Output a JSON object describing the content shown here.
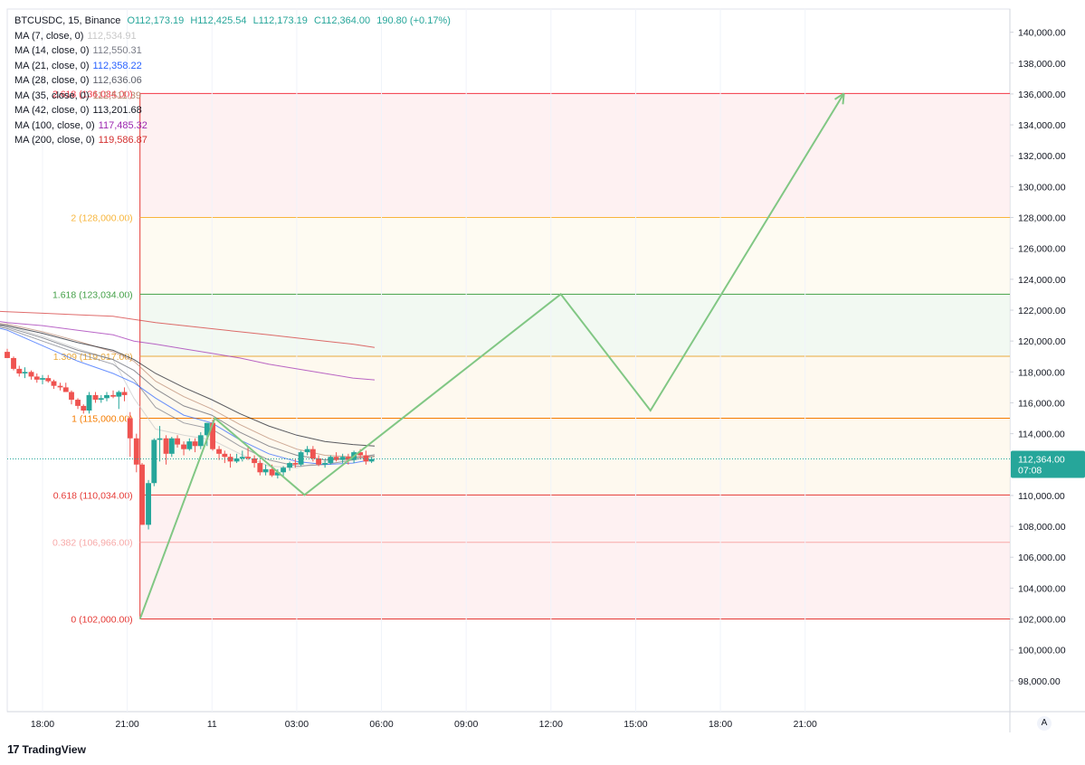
{
  "legend": {
    "symbol": "BTCUSDC, 15, Binance",
    "open": "O112,173.19",
    "high": "H112,425.54",
    "low": "L112,173.19",
    "close": "C112,364.00",
    "change": "190.80 (+0.17%)",
    "indicators": [
      {
        "label": "MA (7, close, 0)",
        "value": "112,534.91",
        "color": "#c8c8c8"
      },
      {
        "label": "MA (14, close, 0)",
        "value": "112,550.31",
        "color": "#787b86"
      },
      {
        "label": "MA (21, close, 0)",
        "value": "112,358.22",
        "color": "#2962ff"
      },
      {
        "label": "MA (28, close, 0)",
        "value": "112,636.06",
        "color": "#5d606b"
      },
      {
        "label": "MA (35, close, 0)",
        "value": "112,511.39",
        "color": "#b9886f"
      },
      {
        "label": "MA (42, close, 0)",
        "value": "113,201.68",
        "color": "#131722"
      },
      {
        "label": "MA (100, close, 0)",
        "value": "117,485.32",
        "color": "#9c27b0"
      },
      {
        "label": "MA (200, close, 0)",
        "value": "119,586.87",
        "color": "#d32f2f"
      }
    ]
  },
  "brand": {
    "logo": "17",
    "name": "TradingView"
  },
  "scale_button": "A",
  "chart_data": {
    "type": "candlestick",
    "symbol": "BTCUSDC",
    "interval": "15",
    "ylim": [
      96000,
      141500
    ],
    "y_ticks": [
      {
        "value": 140000,
        "label": "140,000.00"
      },
      {
        "value": 138000,
        "label": "138,000.00"
      },
      {
        "value": 136000,
        "label": "136,000.00"
      },
      {
        "value": 134000,
        "label": "134,000.00"
      },
      {
        "value": 132000,
        "label": "132,000.00"
      },
      {
        "value": 130000,
        "label": "130,000.00"
      },
      {
        "value": 128000,
        "label": "128,000.00"
      },
      {
        "value": 126000,
        "label": "126,000.00"
      },
      {
        "value": 124000,
        "label": "124,000.00"
      },
      {
        "value": 122000,
        "label": "122,000.00"
      },
      {
        "value": 120000,
        "label": "120,000.00"
      },
      {
        "value": 118000,
        "label": "118,000.00"
      },
      {
        "value": 116000,
        "label": "116,000.00"
      },
      {
        "value": 114000,
        "label": "114,000.00"
      },
      {
        "value": 110000,
        "label": "110,000.00"
      },
      {
        "value": 108000,
        "label": "108,000.00"
      },
      {
        "value": 106000,
        "label": "106,000.00"
      },
      {
        "value": 104000,
        "label": "104,000.00"
      },
      {
        "value": 102000,
        "label": "102,000.00"
      },
      {
        "value": 100000,
        "label": "100,000.00"
      },
      {
        "value": 98000,
        "label": "98,000.00"
      }
    ],
    "x_range": [
      -5,
      137
    ],
    "x_ticks": [
      {
        "bar": 0,
        "label": "18:00"
      },
      {
        "bar": 12,
        "label": "21:00"
      },
      {
        "bar": 24,
        "label": "11"
      },
      {
        "bar": 36,
        "label": "03:00"
      },
      {
        "bar": 48,
        "label": "06:00"
      },
      {
        "bar": 60,
        "label": "09:00"
      },
      {
        "bar": 72,
        "label": "12:00"
      },
      {
        "bar": 84,
        "label": "15:00"
      },
      {
        "bar": 96,
        "label": "18:00"
      },
      {
        "bar": 108,
        "label": "21:00"
      }
    ],
    "price_label": {
      "value": 112364,
      "text": "112,364.00",
      "countdown": "07:08",
      "color": "#26a69a"
    },
    "candles": [
      [
        -7.5,
        119100,
        119300,
        118900,
        119000
      ],
      [
        -6.6,
        119000,
        119500,
        118800,
        119200
      ],
      [
        -5.8,
        119200,
        119400,
        118900,
        119300
      ],
      [
        -5.0,
        119300,
        119500,
        118900,
        118900
      ],
      [
        -4.1,
        118900,
        119000,
        118100,
        118200
      ],
      [
        -3.3,
        118200,
        118400,
        117700,
        117900
      ],
      [
        -2.5,
        117900,
        118300,
        117600,
        118000
      ],
      [
        -1.6,
        118000,
        118100,
        117500,
        117700
      ],
      [
        -0.8,
        117700,
        117900,
        117300,
        117500
      ],
      [
        0.0,
        117500,
        117800,
        117200,
        117600
      ],
      [
        0.8,
        117600,
        117800,
        117300,
        117400
      ],
      [
        1.6,
        117400,
        117500,
        116900,
        117100
      ],
      [
        2.5,
        117100,
        117300,
        116800,
        117000
      ],
      [
        3.3,
        117000,
        117300,
        116700,
        116700
      ],
      [
        4.1,
        116700,
        116800,
        115900,
        116200
      ],
      [
        5.0,
        116200,
        116300,
        115600,
        115800
      ],
      [
        5.8,
        115800,
        115900,
        115300,
        115500
      ],
      [
        6.6,
        115500,
        116700,
        115300,
        116500
      ],
      [
        7.5,
        116500,
        116700,
        116000,
        116200
      ],
      [
        8.3,
        116200,
        116500,
        116000,
        116300
      ],
      [
        9.1,
        116300,
        116700,
        116100,
        116500
      ],
      [
        10.0,
        116500,
        116800,
        116300,
        116400
      ],
      [
        10.8,
        116400,
        116800,
        115600,
        116700
      ],
      [
        11.6,
        116700,
        117000,
        116100,
        116500
      ],
      [
        12.4,
        115000,
        115400,
        112500,
        113700
      ],
      [
        13.3,
        113700,
        114000,
        111500,
        112000
      ],
      [
        14.1,
        112000,
        112100,
        108100,
        108100
      ],
      [
        15.0,
        108100,
        111000,
        107800,
        110800
      ],
      [
        15.8,
        110800,
        113700,
        110600,
        113600
      ],
      [
        16.6,
        113600,
        114500,
        112200,
        113700
      ],
      [
        17.5,
        113700,
        113900,
        112000,
        112700
      ],
      [
        18.3,
        112700,
        113800,
        112500,
        113700
      ],
      [
        19.1,
        113700,
        113900,
        113100,
        113300
      ],
      [
        20.0,
        113300,
        113500,
        112600,
        113000
      ],
      [
        20.8,
        113000,
        113700,
        112900,
        113500
      ],
      [
        21.6,
        113500,
        113700,
        112800,
        113200
      ],
      [
        22.4,
        113200,
        114100,
        113000,
        113900
      ],
      [
        23.3,
        113900,
        114700,
        113200,
        114700
      ],
      [
        24.1,
        114700,
        114900,
        112900,
        113000
      ],
      [
        25.0,
        113000,
        113200,
        112300,
        112700
      ],
      [
        25.8,
        112700,
        112900,
        112100,
        112500
      ],
      [
        26.6,
        112500,
        112700,
        111800,
        112200
      ],
      [
        27.5,
        112200,
        112700,
        112100,
        112400
      ],
      [
        28.3,
        112400,
        112900,
        112200,
        112500
      ],
      [
        29.1,
        112500,
        113100,
        112300,
        112400
      ],
      [
        30.0,
        112400,
        112600,
        111800,
        112100
      ],
      [
        30.8,
        112100,
        112300,
        111300,
        111500
      ],
      [
        31.6,
        111500,
        112000,
        111300,
        111700
      ],
      [
        32.5,
        111700,
        112000,
        111200,
        111300
      ],
      [
        33.3,
        111300,
        111700,
        111100,
        111500
      ],
      [
        34.1,
        111500,
        111900,
        111200,
        111800
      ],
      [
        35.0,
        111800,
        112200,
        111600,
        112100
      ],
      [
        35.8,
        112100,
        112400,
        111800,
        112000
      ],
      [
        36.6,
        112000,
        112900,
        111900,
        112800
      ],
      [
        37.5,
        112800,
        113200,
        112600,
        113000
      ],
      [
        38.3,
        113000,
        113200,
        112200,
        112400
      ],
      [
        39.1,
        112400,
        112600,
        111900,
        112000
      ],
      [
        40.0,
        112000,
        112300,
        111800,
        112100
      ],
      [
        40.8,
        112100,
        112600,
        112000,
        112500
      ],
      [
        41.6,
        112500,
        112800,
        112200,
        112300
      ],
      [
        42.5,
        112300,
        112700,
        112100,
        112500
      ],
      [
        43.3,
        112500,
        112700,
        112000,
        112300
      ],
      [
        44.1,
        112300,
        112900,
        112100,
        112800
      ],
      [
        45.0,
        112800,
        113000,
        112400,
        112600
      ],
      [
        45.8,
        112600,
        112900,
        112000,
        112200
      ],
      [
        46.6,
        112200,
        112500,
        112100,
        112364
      ]
    ],
    "moving_averages": [
      {
        "name": "MA (7, close, 0)",
        "color": "#c8c8c8",
        "points": [
          [
            -10,
            121300
          ],
          [
            -5,
            121000
          ],
          [
            0,
            120300
          ],
          [
            5,
            119500
          ],
          [
            10,
            118800
          ],
          [
            13,
            116300
          ],
          [
            16,
            114300
          ],
          [
            20,
            113900
          ],
          [
            24,
            113600
          ],
          [
            28,
            112700
          ],
          [
            32,
            111900
          ],
          [
            36,
            111800
          ],
          [
            40,
            112200
          ],
          [
            44,
            112500
          ],
          [
            47,
            112500
          ]
        ]
      },
      {
        "name": "MA (14, close, 0)",
        "color": "#787b86",
        "points": [
          [
            -10,
            121300
          ],
          [
            -5,
            120800
          ],
          [
            0,
            120000
          ],
          [
            5,
            119200
          ],
          [
            10,
            118500
          ],
          [
            13,
            117500
          ],
          [
            16,
            115700
          ],
          [
            20,
            114700
          ],
          [
            24,
            114300
          ],
          [
            28,
            113200
          ],
          [
            32,
            112300
          ],
          [
            36,
            111900
          ],
          [
            40,
            112000
          ],
          [
            44,
            112300
          ],
          [
            47,
            112550
          ]
        ]
      },
      {
        "name": "MA (21, close, 0)",
        "color": "#2962ff",
        "points": [
          [
            -10,
            121300
          ],
          [
            -5,
            120700
          ],
          [
            0,
            119700
          ],
          [
            5,
            118700
          ],
          [
            10,
            117900
          ],
          [
            13,
            117300
          ],
          [
            16,
            116300
          ],
          [
            20,
            115200
          ],
          [
            24,
            114700
          ],
          [
            28,
            113600
          ],
          [
            32,
            112700
          ],
          [
            36,
            112200
          ],
          [
            40,
            112000
          ],
          [
            44,
            112100
          ],
          [
            47,
            112358
          ]
        ]
      },
      {
        "name": "MA (28, close, 0)",
        "color": "#5d606b",
        "points": [
          [
            -10,
            121300
          ],
          [
            -5,
            120900
          ],
          [
            0,
            120200
          ],
          [
            5,
            119400
          ],
          [
            10,
            118800
          ],
          [
            13,
            118100
          ],
          [
            16,
            116900
          ],
          [
            20,
            115800
          ],
          [
            24,
            115200
          ],
          [
            28,
            114100
          ],
          [
            32,
            113200
          ],
          [
            36,
            112600
          ],
          [
            40,
            112300
          ],
          [
            44,
            112400
          ],
          [
            47,
            112636
          ]
        ]
      },
      {
        "name": "MA (35, close, 0)",
        "color": "#b9886f",
        "points": [
          [
            -10,
            121300
          ],
          [
            -5,
            121100
          ],
          [
            0,
            120600
          ],
          [
            5,
            120000
          ],
          [
            10,
            119300
          ],
          [
            13,
            118700
          ],
          [
            16,
            117400
          ],
          [
            20,
            116400
          ],
          [
            24,
            115600
          ],
          [
            28,
            114600
          ],
          [
            32,
            113700
          ],
          [
            36,
            113000
          ],
          [
            40,
            112600
          ],
          [
            44,
            112500
          ],
          [
            47,
            112511
          ]
        ]
      },
      {
        "name": "MA (42, close, 0)",
        "color": "#131722",
        "points": [
          [
            -10,
            121300
          ],
          [
            -5,
            121000
          ],
          [
            0,
            120500
          ],
          [
            5,
            119900
          ],
          [
            10,
            119400
          ],
          [
            13,
            118800
          ],
          [
            16,
            117900
          ],
          [
            20,
            117000
          ],
          [
            24,
            116200
          ],
          [
            28,
            115300
          ],
          [
            32,
            114500
          ],
          [
            36,
            113900
          ],
          [
            40,
            113500
          ],
          [
            44,
            113300
          ],
          [
            47,
            113201
          ]
        ]
      },
      {
        "name": "MA (100, close, 0)",
        "color": "#9c27b0",
        "points": [
          [
            -10,
            121500
          ],
          [
            -5,
            121200
          ],
          [
            0,
            121000
          ],
          [
            5,
            120700
          ],
          [
            10,
            120400
          ],
          [
            13,
            120000
          ],
          [
            16,
            119800
          ],
          [
            20,
            119500
          ],
          [
            24,
            119200
          ],
          [
            28,
            118900
          ],
          [
            32,
            118500
          ],
          [
            36,
            118200
          ],
          [
            40,
            117900
          ],
          [
            44,
            117600
          ],
          [
            47,
            117485
          ]
        ]
      },
      {
        "name": "MA (200, close, 0)",
        "color": "#d32f2f",
        "points": [
          [
            -10,
            122000
          ],
          [
            -5,
            121900
          ],
          [
            0,
            121800
          ],
          [
            5,
            121700
          ],
          [
            10,
            121600
          ],
          [
            13,
            121400
          ],
          [
            16,
            121200
          ],
          [
            20,
            121000
          ],
          [
            24,
            120800
          ],
          [
            28,
            120600
          ],
          [
            32,
            120400
          ],
          [
            36,
            120200
          ],
          [
            40,
            120000
          ],
          [
            44,
            119800
          ],
          [
            47,
            119587
          ]
        ]
      }
    ],
    "fibonacci": {
      "x_start": 13.8,
      "x_end": 137,
      "levels": [
        {
          "ratio": "2.618",
          "value": 136034,
          "label": "2.618 (136,034.00)",
          "color": "#f23645",
          "fill": "#fdeced"
        },
        {
          "ratio": "2",
          "value": 128000,
          "label": "2 (128,000.00)",
          "color": "#f7b53b",
          "fill": "#fef9ee"
        },
        {
          "ratio": "1.618",
          "value": 123034,
          "label": "1.618 (123,034.00)",
          "color": "#43a047",
          "fill": "#eef7ee"
        },
        {
          "ratio": "1.309",
          "value": 119017,
          "label": "1.309 (119,017.00)",
          "color": "#e9a93d",
          "fill": "#fdf7ea"
        },
        {
          "ratio": "1",
          "value": 115000,
          "label": "1 (115,000.00)",
          "color": "#f57c00",
          "fill": "#fdf7ea"
        },
        {
          "ratio": "0.618",
          "value": 110034,
          "label": "0.618 (110,034.00)",
          "color": "#e53935",
          "fill": "#fdeced"
        },
        {
          "ratio": "0.382",
          "value": 106966,
          "label": "0.382 (106,966.00)",
          "color": "#f7a9a8",
          "fill": "#fdeced"
        },
        {
          "ratio": "0",
          "value": 102000,
          "label": "0 (102,000.00)",
          "color": "#e53935",
          "fill": ""
        }
      ]
    },
    "projection_path": {
      "color": "#81c784",
      "points": [
        [
          13.8,
          102000
        ],
        [
          24.4,
          115000
        ],
        [
          37.1,
          110034
        ],
        [
          73.4,
          123034
        ],
        [
          86.1,
          115500
        ],
        [
          113.5,
          136034
        ]
      ]
    }
  }
}
